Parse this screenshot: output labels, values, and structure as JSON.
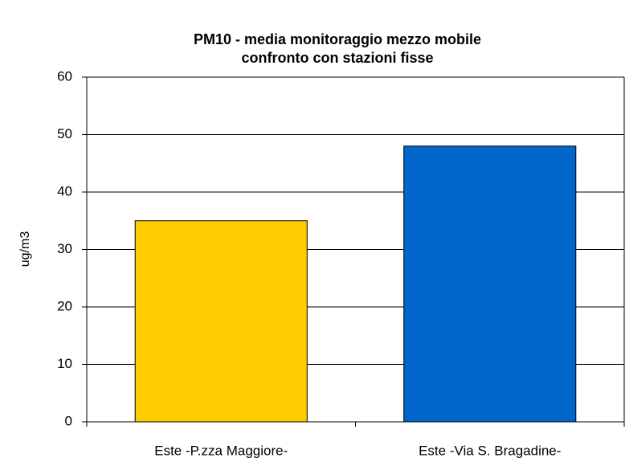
{
  "chart_data": {
    "type": "bar",
    "title": "PM10 - media monitoraggio mezzo mobile",
    "subtitle": "confronto con stazioni fisse",
    "y_label": "ug/m3",
    "categories": [
      "Este -P.zza Maggiore-",
      "Este -Via S. Bragadine-"
    ],
    "values": [
      35,
      48
    ],
    "colors": [
      "#ffcc00",
      "#0066cc"
    ],
    "ylim": [
      0,
      60
    ],
    "yticks": [
      0,
      10,
      20,
      30,
      40,
      50,
      60
    ],
    "grid": true
  }
}
